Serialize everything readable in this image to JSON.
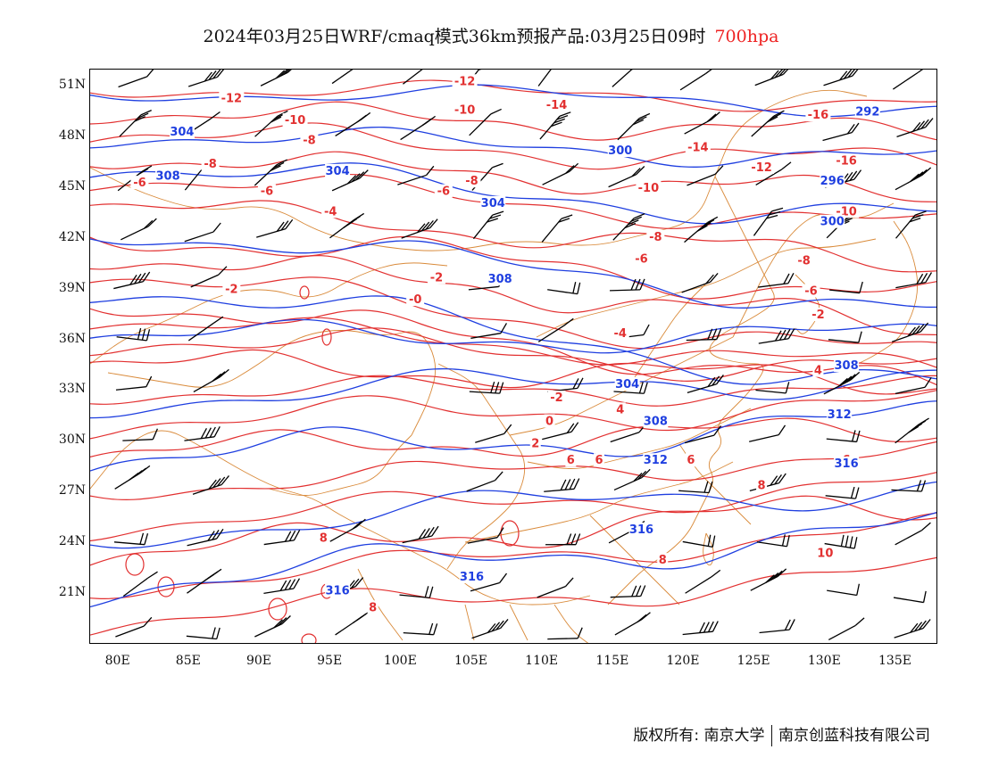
{
  "title": {
    "text": "2024年03月25日WRF/cmaq模式36km预报产品:03月25日09时",
    "level": "700hpa"
  },
  "axes": {
    "lat_labels": [
      "51N",
      "48N",
      "45N",
      "42N",
      "39N",
      "36N",
      "33N",
      "30N",
      "27N",
      "24N",
      "21N"
    ],
    "lon_labels": [
      "80E",
      "85E",
      "90E",
      "95E",
      "100E",
      "105E",
      "110E",
      "115E",
      "120E",
      "125E",
      "130E",
      "135E"
    ]
  },
  "map": {
    "lon_range": [
      78,
      138
    ],
    "lat_range": [
      18,
      52
    ],
    "colors": {
      "height_contour": "#1f3fe0",
      "temp_contour": "#e23030",
      "boundary": "#d98a3a",
      "wind_barb": "#000000"
    },
    "height_labels": [
      {
        "text": "304",
        "lon": 84.5,
        "lat": 48.3
      },
      {
        "text": "308",
        "lon": 83.5,
        "lat": 45.7
      },
      {
        "text": "304",
        "lon": 95.5,
        "lat": 46.0
      },
      {
        "text": "304",
        "lon": 106.5,
        "lat": 44.1
      },
      {
        "text": "300",
        "lon": 115.5,
        "lat": 47.2
      },
      {
        "text": "296",
        "lon": 130.5,
        "lat": 45.4
      },
      {
        "text": "292",
        "lon": 133.0,
        "lat": 49.5
      },
      {
        "text": "300",
        "lon": 130.5,
        "lat": 43.0
      },
      {
        "text": "308",
        "lon": 107.0,
        "lat": 39.6
      },
      {
        "text": "304",
        "lon": 116.0,
        "lat": 33.4
      },
      {
        "text": "308",
        "lon": 118.0,
        "lat": 31.2
      },
      {
        "text": "312",
        "lon": 118.0,
        "lat": 28.9
      },
      {
        "text": "312",
        "lon": 131.0,
        "lat": 31.6
      },
      {
        "text": "316",
        "lon": 117.0,
        "lat": 24.8
      },
      {
        "text": "316",
        "lon": 105.0,
        "lat": 22.0
      },
      {
        "text": "316",
        "lon": 95.5,
        "lat": 21.2
      },
      {
        "text": "316",
        "lon": 131.5,
        "lat": 28.7
      },
      {
        "text": "308",
        "lon": 131.5,
        "lat": 34.5
      }
    ],
    "temp_labels": [
      {
        "text": "-12",
        "lon": 88.0,
        "lat": 50.3
      },
      {
        "text": "-12",
        "lon": 104.5,
        "lat": 51.3
      },
      {
        "text": "-10",
        "lon": 104.5,
        "lat": 49.6
      },
      {
        "text": "-10",
        "lon": 92.5,
        "lat": 49.0
      },
      {
        "text": "-14",
        "lon": 111.0,
        "lat": 49.9
      },
      {
        "text": "-8",
        "lon": 93.5,
        "lat": 47.8
      },
      {
        "text": "-8",
        "lon": 86.5,
        "lat": 46.4
      },
      {
        "text": "-6",
        "lon": 81.5,
        "lat": 45.3
      },
      {
        "text": "-6",
        "lon": 90.5,
        "lat": 44.8
      },
      {
        "text": "-8",
        "lon": 105.0,
        "lat": 45.4
      },
      {
        "text": "-6",
        "lon": 103.0,
        "lat": 44.8
      },
      {
        "text": "-4",
        "lon": 95.0,
        "lat": 43.6
      },
      {
        "text": "-14",
        "lon": 121.0,
        "lat": 47.4
      },
      {
        "text": "-12",
        "lon": 125.5,
        "lat": 46.2
      },
      {
        "text": "-16",
        "lon": 129.5,
        "lat": 49.3
      },
      {
        "text": "-16",
        "lon": 131.5,
        "lat": 46.6
      },
      {
        "text": "-10",
        "lon": 117.5,
        "lat": 45.0
      },
      {
        "text": "-10",
        "lon": 131.5,
        "lat": 43.6
      },
      {
        "text": "-8",
        "lon": 118.0,
        "lat": 42.1
      },
      {
        "text": "-8",
        "lon": 128.5,
        "lat": 40.7
      },
      {
        "text": "-6",
        "lon": 117.0,
        "lat": 40.8
      },
      {
        "text": "-6",
        "lon": 129.0,
        "lat": 38.9
      },
      {
        "text": "-2",
        "lon": 102.5,
        "lat": 39.7
      },
      {
        "text": "-2",
        "lon": 88.0,
        "lat": 39.0
      },
      {
        "text": "-0",
        "lon": 101.0,
        "lat": 38.4
      },
      {
        "text": "-4",
        "lon": 115.5,
        "lat": 36.4
      },
      {
        "text": "-2",
        "lon": 129.5,
        "lat": 37.5
      },
      {
        "text": "-2",
        "lon": 111.0,
        "lat": 32.6
      },
      {
        "text": "4",
        "lon": 115.5,
        "lat": 31.9
      },
      {
        "text": "4",
        "lon": 129.5,
        "lat": 34.2
      },
      {
        "text": "0",
        "lon": 110.5,
        "lat": 31.2
      },
      {
        "text": "2",
        "lon": 109.5,
        "lat": 29.9
      },
      {
        "text": "6",
        "lon": 112.0,
        "lat": 28.9
      },
      {
        "text": "6",
        "lon": 114.0,
        "lat": 28.9
      },
      {
        "text": "6",
        "lon": 120.5,
        "lat": 28.9
      },
      {
        "text": "6",
        "lon": 131.5,
        "lat": 28.9
      },
      {
        "text": "8",
        "lon": 125.5,
        "lat": 27.4
      },
      {
        "text": "8",
        "lon": 94.5,
        "lat": 24.3
      },
      {
        "text": "8",
        "lon": 118.5,
        "lat": 23.0
      },
      {
        "text": "10",
        "lon": 130.0,
        "lat": 23.4
      },
      {
        "text": "8",
        "lon": 98.0,
        "lat": 20.2
      }
    ]
  },
  "footer": {
    "left": "版权所有: 南京大学",
    "right": "南京创蓝科技有限公司"
  }
}
